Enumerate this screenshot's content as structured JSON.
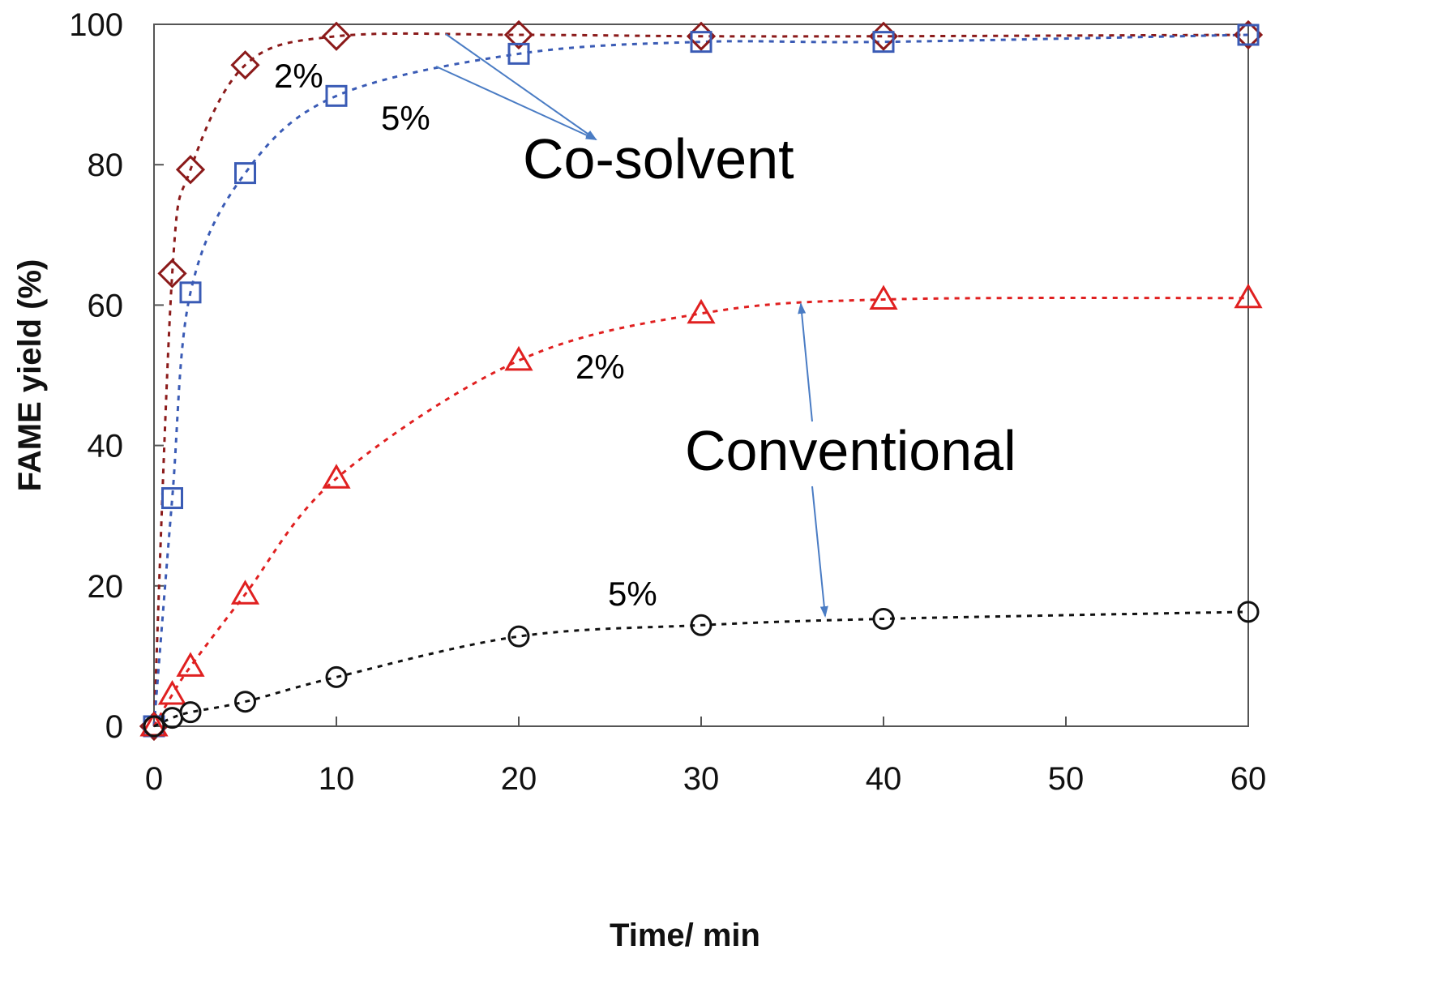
{
  "chart_data": {
    "type": "scatter",
    "title": "",
    "xlabel": "Time/ min",
    "ylabel": "FAME yield (%)",
    "xlim": [
      0,
      60
    ],
    "ylim": [
      0,
      100
    ],
    "x_ticks": [
      0,
      10,
      20,
      30,
      40,
      50,
      60
    ],
    "y_ticks": [
      0,
      20,
      40,
      60,
      80,
      100
    ],
    "grid": false,
    "legend": "none",
    "series": [
      {
        "label": "Co-solvent 2%",
        "marker": "diamond",
        "color": "#8B1A1A",
        "x": [
          0,
          1,
          2,
          5,
          10,
          20,
          30,
          40,
          60
        ],
        "y": [
          0,
          64.5,
          79.3,
          94.2,
          98.3,
          98.5,
          98.3,
          98.3,
          98.5
        ]
      },
      {
        "label": "Co-solvent 5%",
        "marker": "square",
        "color": "#3A5BB5",
        "x": [
          0,
          1,
          2,
          5,
          10,
          20,
          30,
          40,
          60
        ],
        "y": [
          0,
          32.5,
          61.8,
          78.8,
          89.8,
          95.8,
          97.5,
          97.5,
          98.5
        ]
      },
      {
        "label": "Conventional 2%",
        "marker": "triangle",
        "color": "#E02020",
        "x": [
          0,
          1,
          2,
          5,
          10,
          20,
          30,
          40,
          60
        ],
        "y": [
          0,
          4.5,
          8.5,
          18.8,
          35.3,
          52.1,
          58.8,
          60.8,
          61.0
        ]
      },
      {
        "label": "Conventional 5%",
        "marker": "circle",
        "color": "#111111",
        "x": [
          0,
          1,
          2,
          5,
          10,
          20,
          30,
          40,
          60
        ],
        "y": [
          0,
          1.2,
          2.0,
          3.5,
          7.0,
          12.8,
          14.4,
          15.3,
          16.3
        ]
      }
    ],
    "annotations": {
      "cosolvent_label": "Co-solvent",
      "conventional_label": "Conventional",
      "cosolvent_2": "2%",
      "cosolvent_5": "5%",
      "conventional_2": "2%",
      "conventional_5": "5%"
    },
    "arrow_color": "#4A7CC4"
  }
}
